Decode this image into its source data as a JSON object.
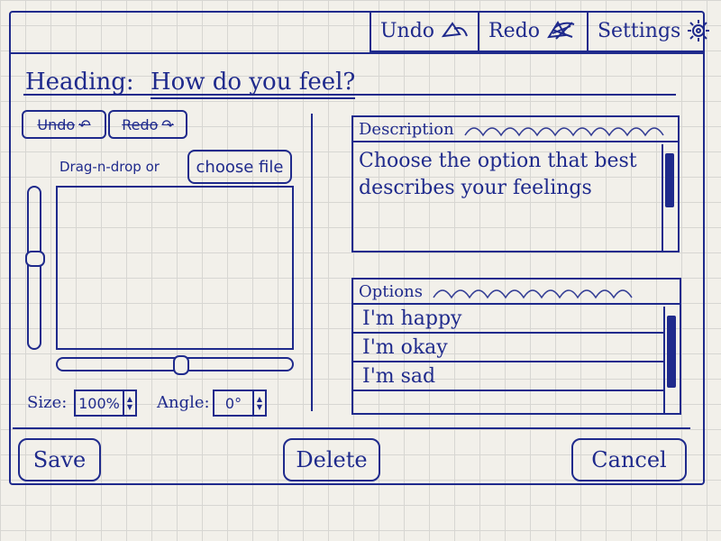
{
  "toolbar": {
    "undo_label": "Undo",
    "redo_label": "Redo",
    "settings_label": "Settings"
  },
  "header": {
    "heading_label": "Heading:",
    "heading_value": "How do you feel?"
  },
  "editor": {
    "undo_label": "Undo",
    "redo_label": "Redo",
    "drag_label": "Drag-n-drop or",
    "choose_file_label": "choose file",
    "size_label": "Size:",
    "size_value": "100%",
    "angle_label": "Angle:",
    "angle_value": "0°"
  },
  "description": {
    "title": "Description",
    "text": "Choose the option that best describes your feelings"
  },
  "options": {
    "title": "Options",
    "items": [
      "I'm happy",
      "I'm okay",
      "I'm sad"
    ]
  },
  "actions": {
    "save_label": "Save",
    "delete_label": "Delete",
    "cancel_label": "Cancel"
  }
}
